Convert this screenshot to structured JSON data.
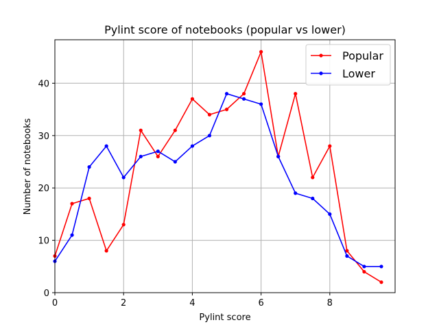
{
  "chart_data": {
    "type": "line",
    "title": "Pylint score of notebooks (popular vs lower)",
    "xlabel": "Pylint score",
    "ylabel": "Number of notebooks",
    "xlim": [
      0,
      9.9
    ],
    "ylim": [
      0,
      48.3
    ],
    "xticks": [
      0,
      2,
      4,
      6,
      8
    ],
    "yticks": [
      0,
      10,
      20,
      30,
      40
    ],
    "grid": true,
    "legend_position": "top-right",
    "x": [
      0,
      0.5,
      1,
      1.5,
      2,
      2.5,
      3,
      3.5,
      4,
      4.5,
      5,
      5.5,
      6,
      6.5,
      7,
      7.5,
      8,
      8.5,
      9,
      9.5
    ],
    "series": [
      {
        "name": "Popular",
        "color": "#ff0000",
        "values": [
          7,
          17,
          18,
          8,
          13,
          31,
          26,
          31,
          37,
          34,
          35,
          38,
          46,
          26,
          38,
          22,
          28,
          8,
          4,
          2
        ]
      },
      {
        "name": "Lower",
        "color": "#0000ff",
        "values": [
          6,
          11,
          24,
          28,
          22,
          26,
          27,
          25,
          28,
          30,
          38,
          37,
          36,
          26,
          19,
          18,
          15,
          7,
          5,
          5
        ]
      }
    ]
  }
}
